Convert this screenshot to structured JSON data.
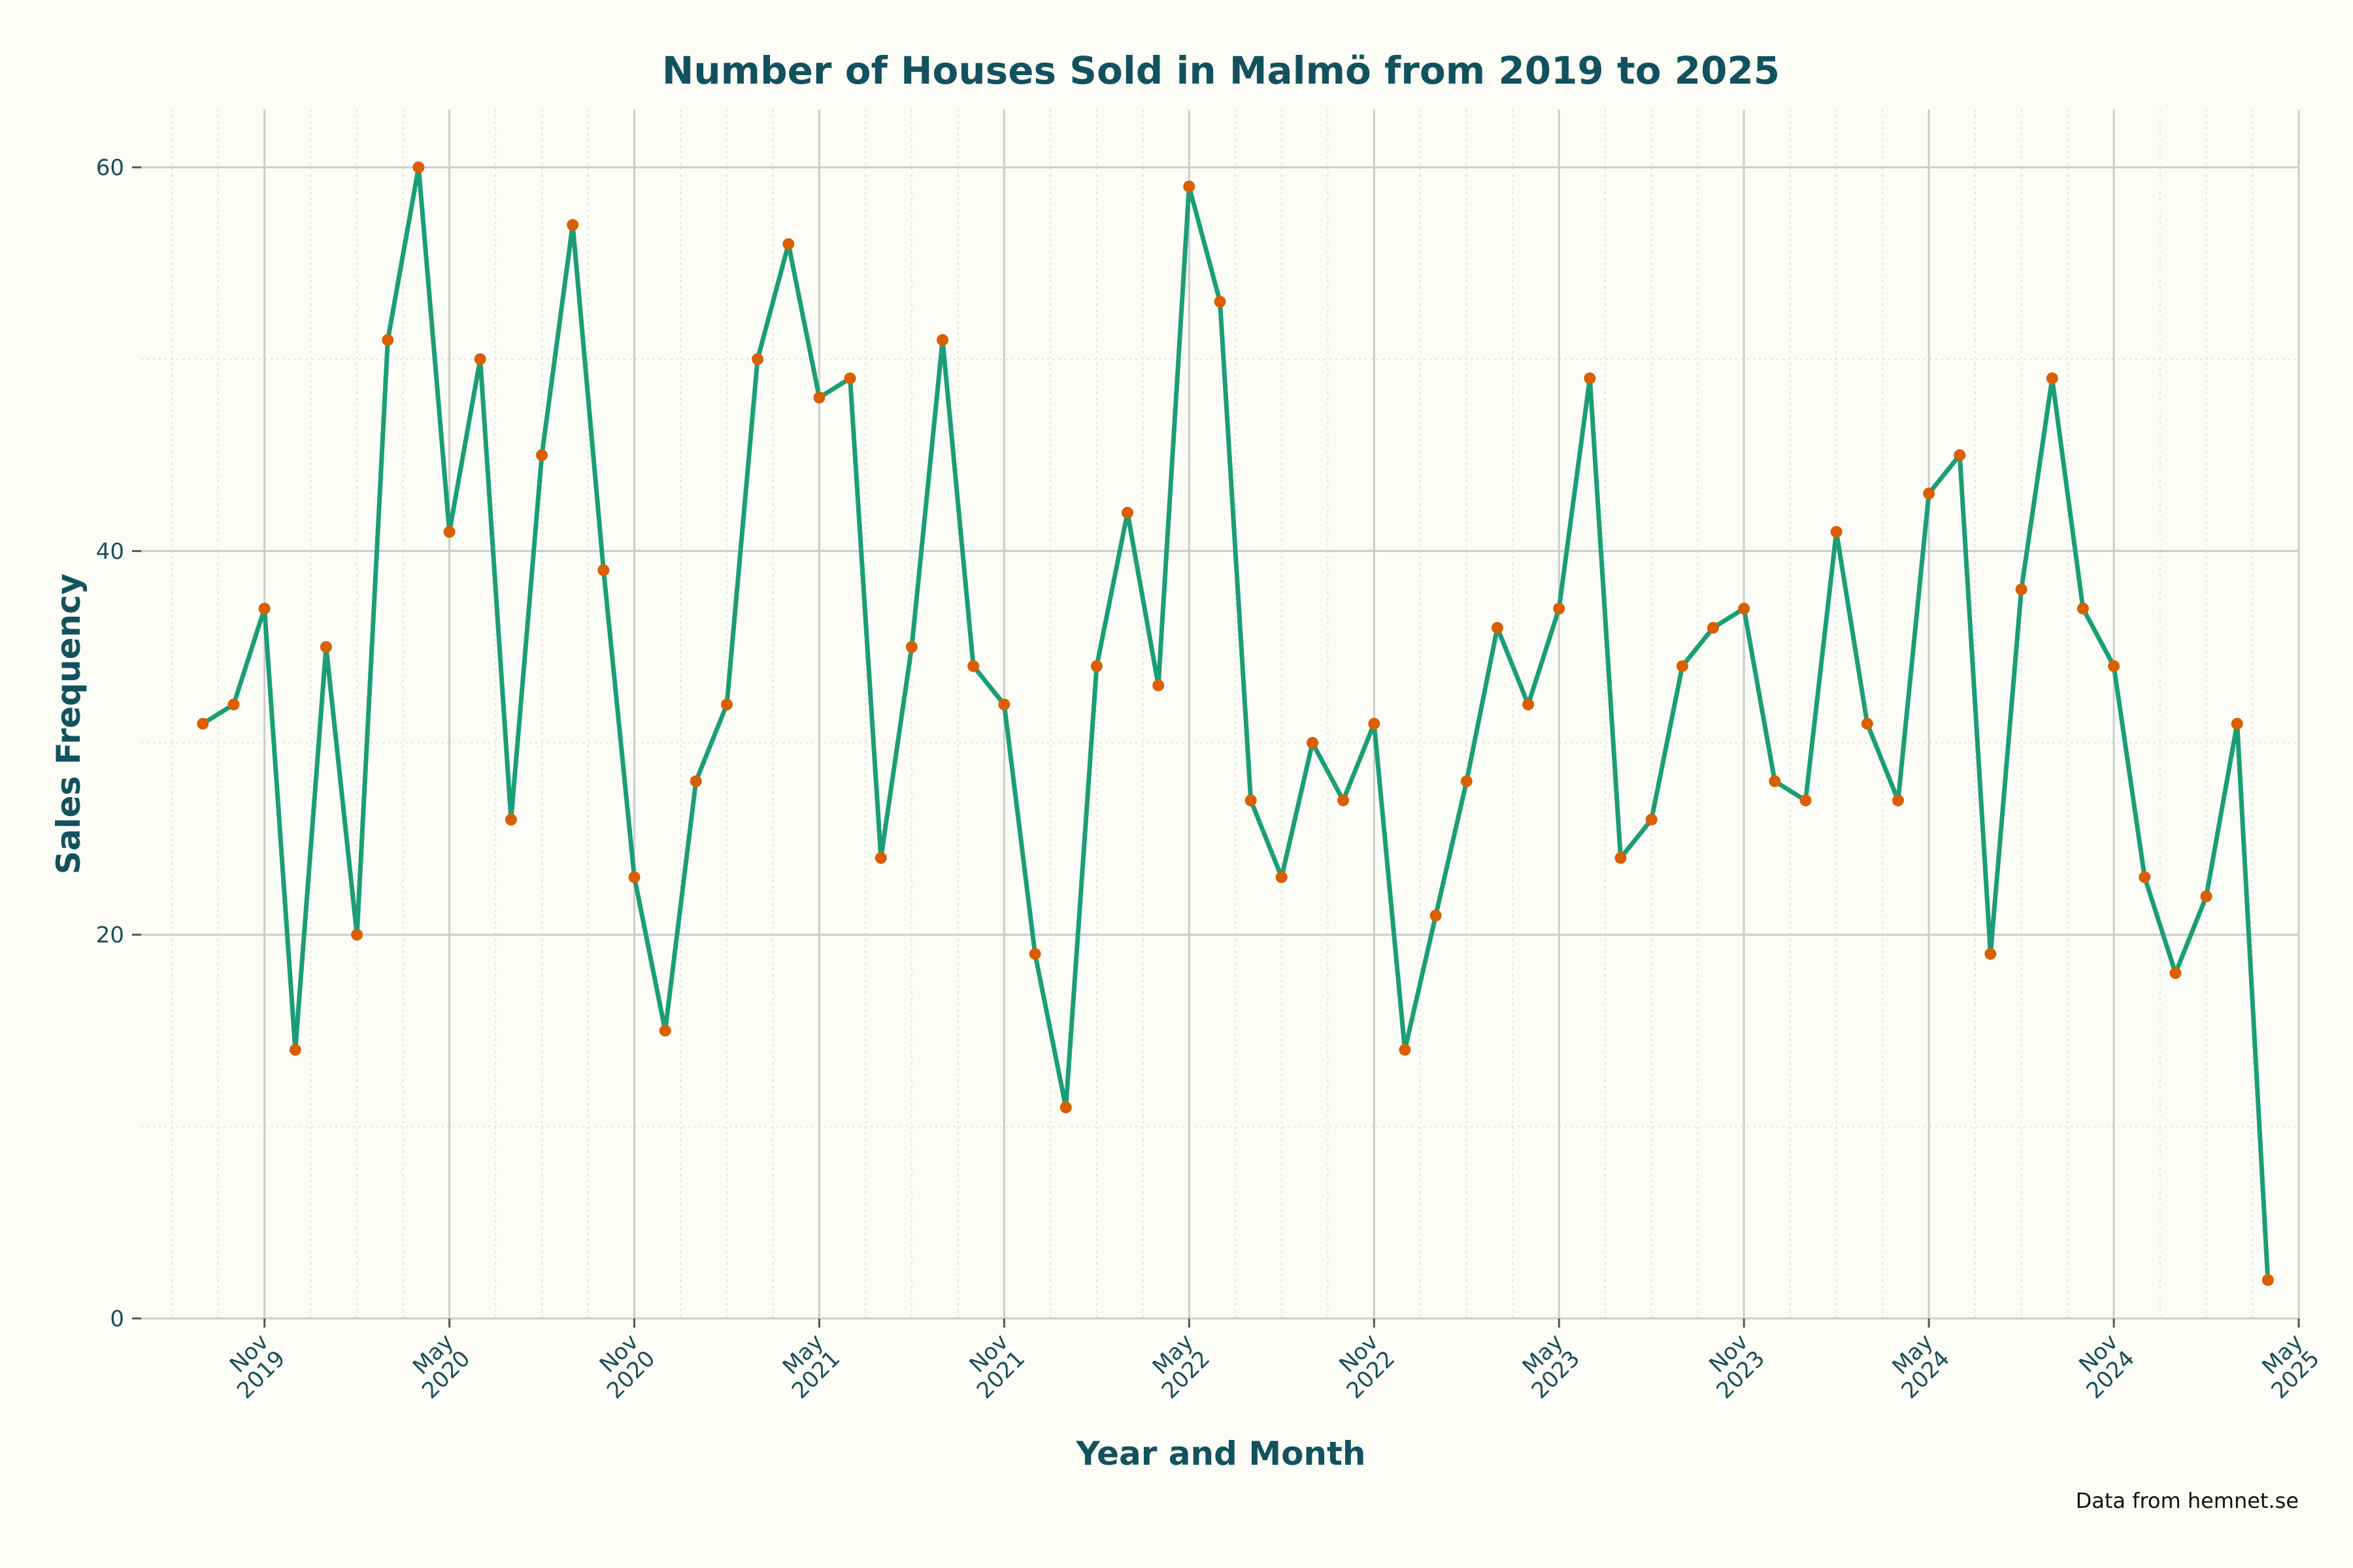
{
  "chart_data": {
    "type": "line",
    "title": "Number of Houses Sold in Malmö from 2019 to 2025",
    "xlabel": "Year and Month",
    "ylabel": "Sales Frequency",
    "caption": "Data from hemnet.se",
    "x_range": [
      "2019-07",
      "2025-05"
    ],
    "ylim": [
      0,
      63
    ],
    "y_ticks": [
      0,
      20,
      40,
      60
    ],
    "x_ticks": [
      {
        "date": "2019-11",
        "label": [
          "Nov",
          "2019"
        ]
      },
      {
        "date": "2020-05",
        "label": [
          "May",
          "2020"
        ]
      },
      {
        "date": "2020-11",
        "label": [
          "Nov",
          "2020"
        ]
      },
      {
        "date": "2021-05",
        "label": [
          "May",
          "2021"
        ]
      },
      {
        "date": "2021-11",
        "label": [
          "Nov",
          "2021"
        ]
      },
      {
        "date": "2022-05",
        "label": [
          "May",
          "2022"
        ]
      },
      {
        "date": "2022-11",
        "label": [
          "Nov",
          "2022"
        ]
      },
      {
        "date": "2023-05",
        "label": [
          "May",
          "2023"
        ]
      },
      {
        "date": "2023-11",
        "label": [
          "Nov",
          "2023"
        ]
      },
      {
        "date": "2024-05",
        "label": [
          "May",
          "2024"
        ]
      },
      {
        "date": "2024-11",
        "label": [
          "Nov",
          "2024"
        ]
      },
      {
        "date": "2025-05",
        "label": [
          "May",
          "2025"
        ]
      }
    ],
    "grid": true,
    "colors": {
      "line": "#1B9E77",
      "marker": "#D95F02",
      "title": "#12525E",
      "text": "#1A4E5A",
      "background": "#FDFDF7",
      "grid": "#CCCCCC",
      "minor_grid": "#E4E4DC"
    },
    "series": [
      {
        "x": [
          "2019-09",
          "2019-10",
          "2019-11",
          "2019-12",
          "2020-01",
          "2020-02",
          "2020-03",
          "2020-04",
          "2020-05",
          "2020-06",
          "2020-07",
          "2020-08",
          "2020-09",
          "2020-10",
          "2020-11",
          "2020-12",
          "2021-01",
          "2021-02",
          "2021-03",
          "2021-04",
          "2021-05",
          "2021-06",
          "2021-07",
          "2021-08",
          "2021-09",
          "2021-10",
          "2021-11",
          "2021-12",
          "2022-01",
          "2022-02",
          "2022-03",
          "2022-04",
          "2022-05",
          "2022-06",
          "2022-07",
          "2022-08",
          "2022-09",
          "2022-10",
          "2022-11",
          "2022-12",
          "2023-01",
          "2023-02",
          "2023-03",
          "2023-04",
          "2023-05",
          "2023-06",
          "2023-07",
          "2023-08",
          "2023-09",
          "2023-10",
          "2023-11",
          "2023-12",
          "2024-01",
          "2024-02",
          "2024-03",
          "2024-04",
          "2024-05",
          "2024-06",
          "2024-07",
          "2024-08",
          "2024-09",
          "2024-10",
          "2024-11",
          "2024-12",
          "2025-01",
          "2025-02",
          "2025-03",
          "2025-04"
        ],
        "values": [
          31,
          32,
          37,
          14,
          35,
          20,
          51,
          60,
          41,
          50,
          26,
          45,
          57,
          39,
          23,
          15,
          28,
          32,
          50,
          56,
          48,
          49,
          24,
          35,
          51,
          34,
          32,
          19,
          11,
          34,
          42,
          33,
          59,
          53,
          27,
          23,
          30,
          27,
          31,
          14,
          21,
          28,
          36,
          32,
          37,
          49,
          24,
          26,
          34,
          36,
          37,
          28,
          27,
          41,
          31,
          27,
          43,
          45,
          19,
          38,
          49,
          37,
          34,
          23,
          18,
          22,
          31,
          2
        ]
      }
    ]
  }
}
